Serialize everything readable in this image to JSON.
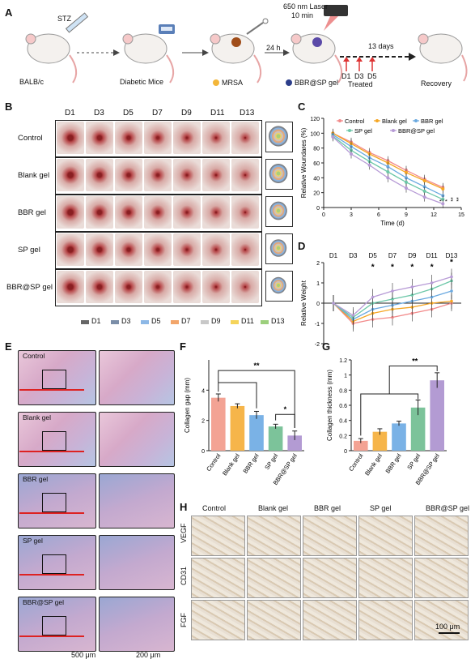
{
  "panelA": {
    "label": "A",
    "stz": "STZ",
    "balbc": "BALB/c",
    "diabetic": "Diabetic Mice",
    "mrsa": "MRSA",
    "h24": "24 h",
    "laser": "650 nm Laser",
    "laser_time": "10 min",
    "bbr_sp": "BBR@SP gel",
    "days13": "13 days",
    "treat_days": [
      "D1",
      "D3",
      "D5"
    ],
    "treated": "Treated",
    "recovery": "Recovery"
  },
  "panelB": {
    "label": "B",
    "days": [
      "D1",
      "D3",
      "D5",
      "D7",
      "D9",
      "D11",
      "D13"
    ],
    "groups": [
      "Control",
      "Blank gel",
      "BBR gel",
      "SP gel",
      "BBR@SP gel"
    ],
    "legend": [
      "D1",
      "D3",
      "D5",
      "D7",
      "D9",
      "D11",
      "D13"
    ],
    "legend_colors": [
      "#666666",
      "#7b8ea8",
      "#8db8e6",
      "#f2a56a",
      "#c8c8c8",
      "#f5d45a",
      "#9ccf7c"
    ]
  },
  "panelC": {
    "label": "C",
    "chart_data": {
      "type": "line",
      "ylabel": "Relative Woundares (%)",
      "xlabel": "Time (d)",
      "xlim": [
        0,
        15
      ],
      "ylim": [
        0,
        120
      ],
      "xticks": [
        0,
        3,
        6,
        9,
        12,
        15
      ],
      "yticks": [
        0,
        20,
        40,
        60,
        80,
        100,
        120
      ],
      "x": [
        1,
        3,
        5,
        7,
        9,
        11,
        13
      ],
      "series": [
        {
          "name": "Control",
          "color": "#f28a8a",
          "values": [
            100,
            88,
            74,
            63,
            50,
            38,
            27
          ]
        },
        {
          "name": "Blank gel",
          "color": "#f5a623",
          "values": [
            100,
            86,
            72,
            60,
            47,
            36,
            25
          ]
        },
        {
          "name": "BBR gel",
          "color": "#6aa9e0",
          "values": [
            98,
            82,
            67,
            55,
            40,
            28,
            16
          ]
        },
        {
          "name": "SP gel",
          "color": "#6cc7a8",
          "values": [
            96,
            77,
            62,
            48,
            34,
            22,
            11
          ]
        },
        {
          "name": "BBR@SP gel",
          "color": "#b79bd6",
          "values": [
            95,
            72,
            57,
            40,
            26,
            14,
            5
          ]
        }
      ],
      "sig": [
        "*",
        "*",
        "**",
        "**"
      ]
    }
  },
  "panelD": {
    "label": "D",
    "chart_data": {
      "type": "line",
      "ylabel": "Relative Weight",
      "days": [
        "D1",
        "D3",
        "D5",
        "D7",
        "D9",
        "D11",
        "D13"
      ],
      "ylim": [
        -2,
        2
      ],
      "yticks": [
        -2,
        -1,
        0,
        1,
        2
      ],
      "series": [
        {
          "name": "Control",
          "color": "#f28a8a",
          "values": [
            0,
            -1.0,
            -0.8,
            -0.7,
            -0.5,
            -0.3,
            0.0
          ]
        },
        {
          "name": "Blank gel",
          "color": "#f5a623",
          "values": [
            0,
            -0.9,
            -0.5,
            -0.3,
            -0.2,
            0.0,
            0.1
          ]
        },
        {
          "name": "BBR gel",
          "color": "#6aa9e0",
          "values": [
            0,
            -0.8,
            -0.3,
            -0.1,
            0.1,
            0.3,
            0.6
          ]
        },
        {
          "name": "SP gel",
          "color": "#6cc7a8",
          "values": [
            0,
            -0.7,
            0.0,
            0.2,
            0.4,
            0.7,
            1.1
          ]
        },
        {
          "name": "BBR@SP gel",
          "color": "#b79bd6",
          "values": [
            0,
            -0.6,
            0.3,
            0.6,
            0.8,
            1.0,
            1.3
          ]
        }
      ],
      "sig_days": [
        "D5",
        "D7",
        "D9",
        "D11",
        "D13"
      ],
      "sig_mark": "*"
    }
  },
  "panelE": {
    "label": "E",
    "groups": [
      "Control",
      "Blank gel",
      "BBR gel",
      "SP gel",
      "BBR@SP gel"
    ],
    "scale1": "500 μm",
    "scale2": "200 μm"
  },
  "panelF": {
    "label": "F",
    "chart_data": {
      "type": "bar",
      "ylabel": "Collagen gap (mm)",
      "categories": [
        "Control",
        "Blank gel",
        "BBR gel",
        "SP gel",
        "BBR@SP gel"
      ],
      "values": [
        3.5,
        2.95,
        2.35,
        1.6,
        1.0
      ],
      "errors": [
        0.25,
        0.15,
        0.25,
        0.15,
        0.3
      ],
      "colors": [
        "#f3a394",
        "#f6b54a",
        "#7ab2e6",
        "#7cc39a",
        "#b39bd3"
      ],
      "ylim": [
        0,
        6
      ],
      "yticks": [
        0,
        2,
        4
      ],
      "sig": [
        "**",
        "*"
      ]
    }
  },
  "panelG": {
    "label": "G",
    "chart_data": {
      "type": "bar",
      "ylabel": "Collagen thickness (mm)",
      "categories": [
        "Control",
        "Blank gel",
        "BBR gel",
        "SP gel",
        "BBR@SP gel"
      ],
      "values": [
        0.13,
        0.25,
        0.36,
        0.57,
        0.93
      ],
      "errors": [
        0.03,
        0.04,
        0.03,
        0.1,
        0.1
      ],
      "colors": [
        "#f3a394",
        "#f6b54a",
        "#7ab2e6",
        "#7cc39a",
        "#b39bd3"
      ],
      "ylim": [
        0,
        1.2
      ],
      "yticks": [
        0.0,
        0.2,
        0.4,
        0.6,
        0.8,
        1.0,
        1.2
      ],
      "sig": [
        "**"
      ]
    }
  },
  "panelH": {
    "label": "H",
    "columns": [
      "Control",
      "Blank gel",
      "BBR gel",
      "SP gel",
      "BBR@SP gel"
    ],
    "rows": [
      "VEGF",
      "CD31",
      "FGF"
    ],
    "scale": "100 μm"
  }
}
